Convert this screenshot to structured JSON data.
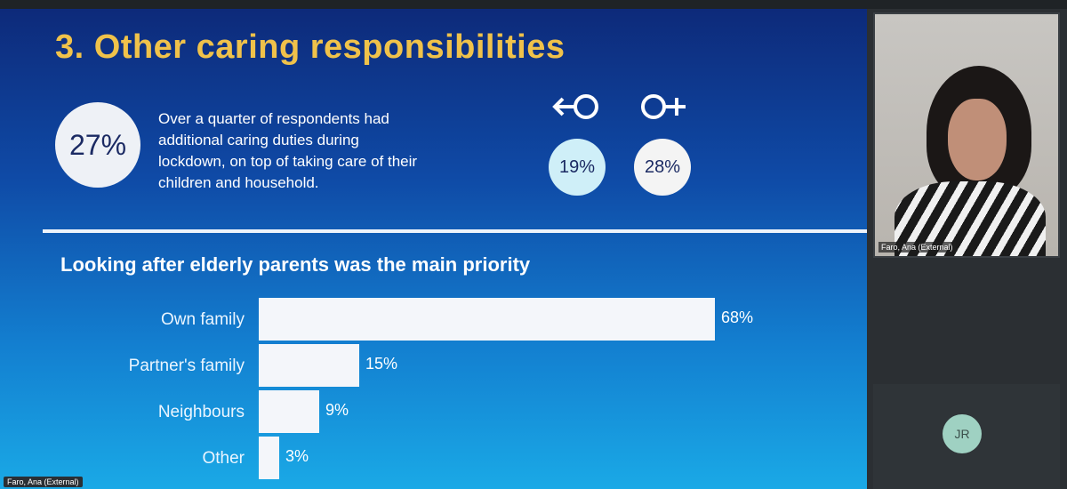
{
  "slide": {
    "title": "3. Other caring responsibilities",
    "headline_stat": "27%",
    "intro_text": "Over a quarter of respondents had additional caring duties during lockdown, on top of taking care of their children and household.",
    "male": {
      "symbol": "male-symbol",
      "value": "19%"
    },
    "female": {
      "symbol": "female-symbol",
      "value": "28%"
    },
    "subtitle": "Looking after elderly parents was the main priority",
    "presenter_label": "Faro, Ana (External)"
  },
  "chart_data": {
    "type": "bar",
    "orientation": "horizontal",
    "categories": [
      "Own family",
      "Partner's family",
      "Neighbours",
      "Other"
    ],
    "values": [
      68,
      15,
      9,
      3
    ],
    "value_labels": [
      "68%",
      "15%",
      "9%",
      "3%"
    ],
    "title": "Looking after elderly parents was the main priority",
    "xlim": [
      0,
      100
    ],
    "grid": false
  },
  "participants": {
    "video_name": "Faro, Ana (External)",
    "jr_initials": "JR"
  },
  "colors": {
    "title": "#f0c24a",
    "slide_top": "#0d2a7a",
    "slide_bottom": "#1aa9e6",
    "bar": "#f4f6fa",
    "jr_avatar": "#9fd1c2"
  }
}
